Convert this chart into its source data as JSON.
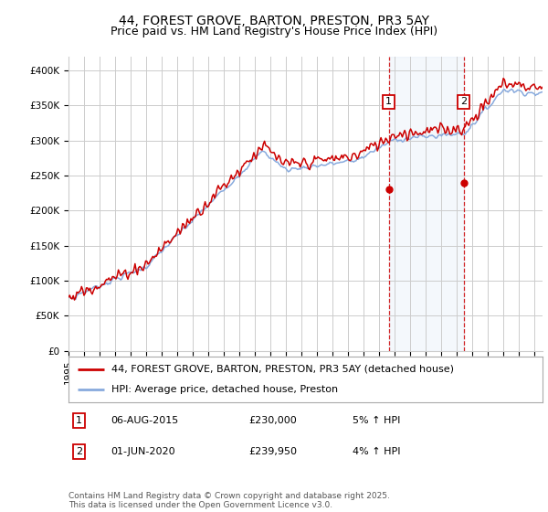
{
  "title": "44, FOREST GROVE, BARTON, PRESTON, PR3 5AY",
  "subtitle": "Price paid vs. HM Land Registry's House Price Index (HPI)",
  "ylabel_ticks": [
    "£0",
    "£50K",
    "£100K",
    "£150K",
    "£200K",
    "£250K",
    "£300K",
    "£350K",
    "£400K"
  ],
  "ytick_values": [
    0,
    50000,
    100000,
    150000,
    200000,
    250000,
    300000,
    350000,
    400000
  ],
  "ylim": [
    0,
    420000
  ],
  "xlim_start": 1995.0,
  "xlim_end": 2025.5,
  "line_color_property": "#cc0000",
  "line_color_hpi": "#88aadd",
  "marker1_x": 2015.6,
  "marker2_x": 2020.42,
  "marker1_y": 230000,
  "marker2_y": 239950,
  "shaded_region_start": 2015.6,
  "shaded_region_end": 2020.42,
  "legend_property_label": "44, FOREST GROVE, BARTON, PRESTON, PR3 5AY (detached house)",
  "legend_hpi_label": "HPI: Average price, detached house, Preston",
  "annotation1_label": "1",
  "annotation1_date": "06-AUG-2015",
  "annotation1_price": "£230,000",
  "annotation1_hpi": "5% ↑ HPI",
  "annotation2_label": "2",
  "annotation2_date": "01-JUN-2020",
  "annotation2_price": "£239,950",
  "annotation2_hpi": "4% ↑ HPI",
  "footer": "Contains HM Land Registry data © Crown copyright and database right 2025.\nThis data is licensed under the Open Government Licence v3.0.",
  "background_color": "#ffffff",
  "grid_color": "#cccccc",
  "title_fontsize": 10,
  "subtitle_fontsize": 9,
  "tick_fontsize": 7.5,
  "legend_fontsize": 8,
  "annotation_fontsize": 8,
  "footer_fontsize": 6.5
}
